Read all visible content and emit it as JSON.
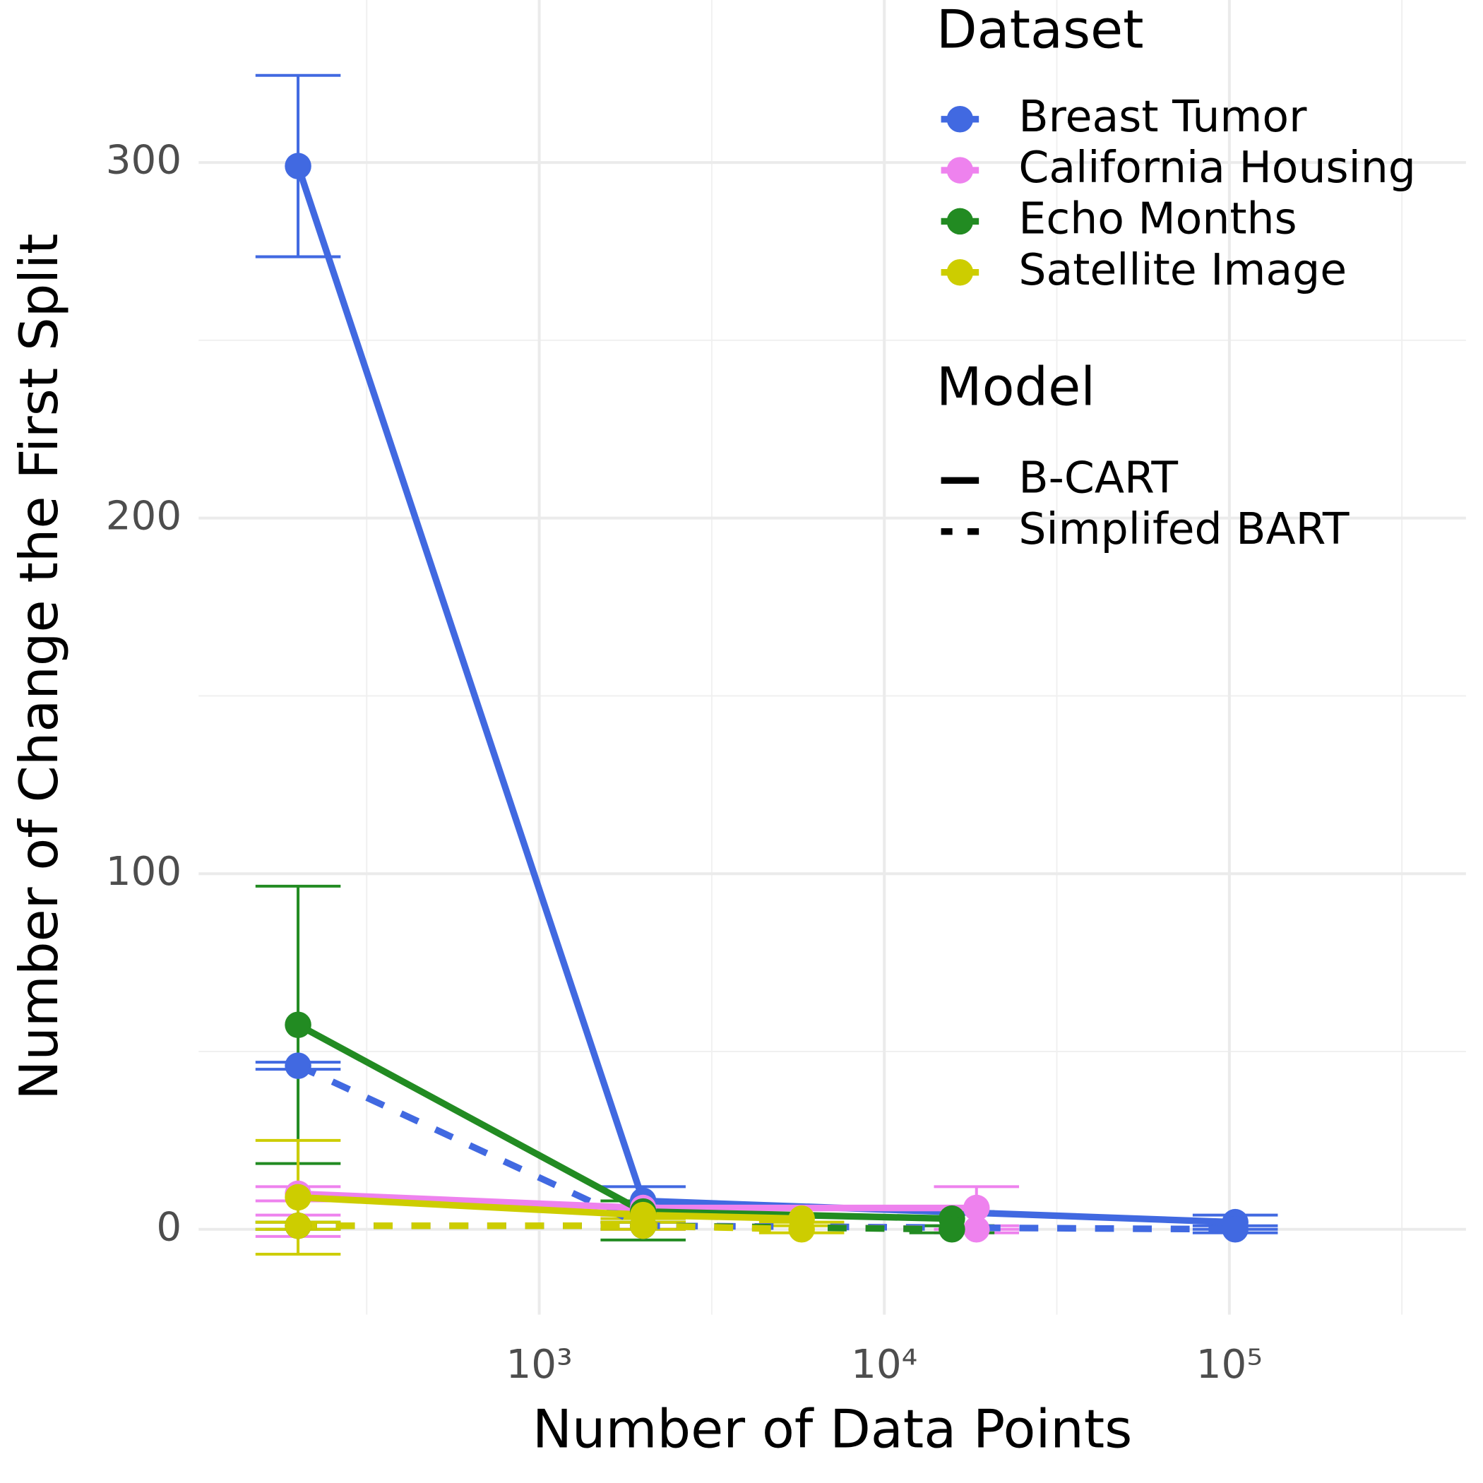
{
  "chart_data": {
    "type": "line",
    "x_label": "Number of Data Points",
    "y_label": "Number of Change the First Split",
    "xscale": "log",
    "xlim": [
      103,
      485000
    ],
    "ylim": [
      -24,
      345.7
    ],
    "xticks": [
      {
        "value": 1000,
        "label": "10³"
      },
      {
        "value": 10000,
        "label": "10⁴"
      },
      {
        "value": 100000,
        "label": "10⁵"
      }
    ],
    "xminor": [
      316.2,
      3162,
      31623,
      316228
    ],
    "yticks": [
      0,
      100,
      200,
      300
    ],
    "yminor": [
      50,
      150,
      250
    ],
    "grid": true,
    "dataset_legend_title": "Dataset",
    "model_legend_title": "Model",
    "models": [
      {
        "name": "B-CART",
        "dash": "solid"
      },
      {
        "name": "Simplifed BART",
        "dash": "dashed"
      }
    ],
    "series": [
      {
        "name": "Breast Tumor",
        "model": "B-CART",
        "color": "#4169e1",
        "x": [
          200,
          2000,
          104000
        ],
        "values": [
          299,
          8,
          2
        ],
        "errors": [
          25.5,
          4,
          2
        ]
      },
      {
        "name": "Breast Tumor",
        "model": "Simplifed BART",
        "color": "#4169e1",
        "x": [
          200,
          2000,
          104000
        ],
        "values": [
          46,
          1,
          0
        ],
        "errors": [
          1,
          1,
          1
        ]
      },
      {
        "name": "California Housing",
        "model": "B-CART",
        "color": "#ee82ee",
        "x": [
          200,
          2000,
          18500
        ],
        "values": [
          10,
          6,
          6
        ],
        "errors": [
          2,
          2,
          6
        ]
      },
      {
        "name": "California Housing",
        "model": "Simplifed BART",
        "color": "#ee82ee",
        "x": [
          200,
          2000,
          18500
        ],
        "values": [
          1,
          1,
          0
        ],
        "errors": [
          3,
          1,
          1
        ]
      },
      {
        "name": "Echo Months",
        "model": "B-CART",
        "color": "#228b22",
        "x": [
          200,
          2000,
          15700
        ],
        "values": [
          57.5,
          5,
          3
        ],
        "errors": [
          39,
          3,
          2
        ]
      },
      {
        "name": "Echo Months",
        "model": "Simplifed BART",
        "color": "#228b22",
        "x": [
          200,
          2000,
          15700
        ],
        "values": [
          1,
          1,
          0
        ],
        "errors": [
          1,
          4,
          1
        ]
      },
      {
        "name": "Satellite Image",
        "model": "B-CART",
        "color": "#cdcd00",
        "x": [
          200,
          2000,
          5760
        ],
        "values": [
          9,
          4,
          3
        ],
        "errors": [
          16,
          1,
          1
        ]
      },
      {
        "name": "Satellite Image",
        "model": "Simplifed BART",
        "color": "#cdcd00",
        "x": [
          200,
          2000,
          5760
        ],
        "values": [
          1,
          1,
          0
        ],
        "errors": [
          1,
          1,
          1
        ]
      }
    ]
  }
}
